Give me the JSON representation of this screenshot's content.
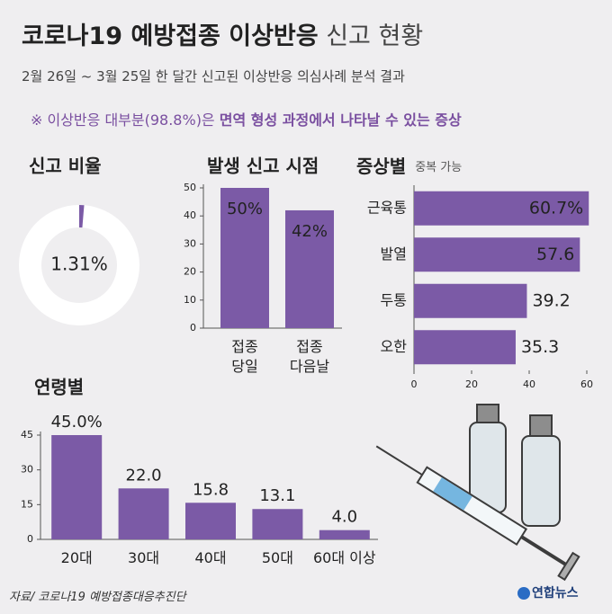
{
  "header": {
    "title_bold": "코로나19 예방접종 이상반응",
    "title_light": "신고 현황",
    "subtitle": "2월 26일 ~ 3월 25일 한 달간 신고된 이상반응 의심사례 분석 결과",
    "note_prefix": "※ 이상반응 대부분(98.8%)은",
    "note_bold": "면역 형성 과정에서 나타날 수 있는 증상"
  },
  "source": "자료/ 코로나19 예방접종대응추진단",
  "logo": "연합뉴스",
  "chart_data": [
    {
      "type": "donut",
      "title": "신고 비율",
      "values": [
        1.31
      ],
      "value_labels": [
        "1.31%"
      ],
      "color": "#7b5aa6"
    },
    {
      "type": "bar",
      "title": "발생 신고 시점",
      "categories": [
        "접종\n당일",
        "접종\n다음날"
      ],
      "values": [
        50,
        42
      ],
      "value_labels": [
        "50%",
        "42%"
      ],
      "color": "#7b5aa6",
      "ylim": [
        0,
        50
      ],
      "yticks": [
        0,
        10,
        20,
        30,
        40,
        50
      ]
    },
    {
      "type": "hbar",
      "title": "증상별",
      "subtitle": "중복 가능",
      "categories": [
        "근육통",
        "발열",
        "두통",
        "오한"
      ],
      "values": [
        60.7,
        57.6,
        39.2,
        35.3
      ],
      "value_labels": [
        "60.7%",
        "57.6",
        "39.2",
        "35.3"
      ],
      "color": "#7b5aa6",
      "xlim": [
        0,
        60
      ],
      "xticks": [
        0,
        20,
        40,
        60
      ]
    },
    {
      "type": "bar",
      "title": "연령별",
      "categories": [
        "20대",
        "30대",
        "40대",
        "50대",
        "60대 이상"
      ],
      "values": [
        45.0,
        22.0,
        15.8,
        13.1,
        4.0
      ],
      "value_labels": [
        "45.0%",
        "22.0",
        "15.8",
        "13.1",
        "4.0"
      ],
      "color": "#7b5aa6",
      "ylim": [
        0,
        45
      ],
      "yticks": [
        0,
        15,
        30,
        45
      ]
    }
  ]
}
